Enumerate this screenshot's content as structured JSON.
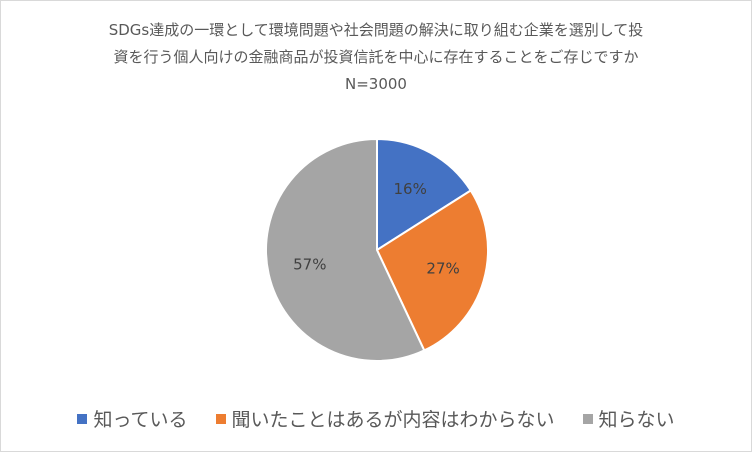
{
  "chart_data": {
    "type": "pie",
    "title_lines": [
      "SDGs達成の一環として環境問題や社会問題の解決に取り組む企業を選別して投",
      "資を行う個人向けの金融商品が投資信託を中心に存在することをご存じですか",
      "N=3000"
    ],
    "categories": [
      "知っている",
      "聞いたことはあるが内容はわからない",
      "知らない"
    ],
    "values": [
      16,
      27,
      57
    ],
    "value_labels": [
      "16%",
      "27%",
      "57%"
    ],
    "colors": [
      "#4472C4",
      "#ED7D31",
      "#A5A5A5"
    ],
    "legend_position": "bottom"
  }
}
